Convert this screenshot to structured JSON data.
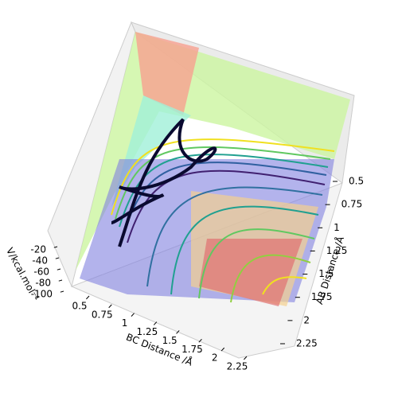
{
  "chart_data": {
    "type": "surface3d",
    "xlabel": "BC Distance /Å",
    "ylabel": "AB Distance /Å",
    "zlabel": "V/kcal.mol⁻¹",
    "xlim": [
      0.5,
      2.25
    ],
    "xticks": [
      0.5,
      0.75,
      1.0,
      1.25,
      1.5,
      1.75,
      2.0,
      2.25
    ],
    "ylim": [
      0.5,
      2.25
    ],
    "yticks": [
      0.5,
      0.75,
      1.0,
      1.25,
      1.5,
      1.75,
      2.0,
      2.25
    ],
    "zlim": [
      -20,
      -100
    ],
    "zticks": [
      -20,
      -40,
      -60,
      -80,
      -100
    ]
  }
}
